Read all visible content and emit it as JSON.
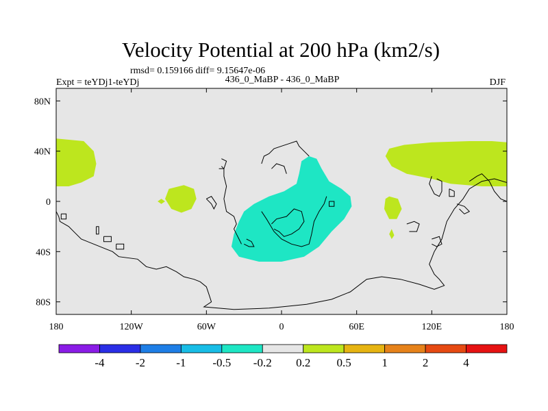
{
  "chart_data": {
    "type": "heatmap",
    "title": "Velocity Potential at 200 hPa (km2/s)",
    "stats": "rmsd= 0.159166 diff= 9.15647e-06",
    "left_label": "Expt = teYDj1-teYDj",
    "center_label": "436_0_MaBP - 436_0_MaBP",
    "right_label": "DJF",
    "xlim": [
      -180,
      180
    ],
    "ylim": [
      -90,
      90
    ],
    "x_ticks": [
      {
        "value": -180,
        "label": "180"
      },
      {
        "value": -120,
        "label": "120W"
      },
      {
        "value": -60,
        "label": "60W"
      },
      {
        "value": 0,
        "label": "0"
      },
      {
        "value": 60,
        "label": "60E"
      },
      {
        "value": 120,
        "label": "120E"
      },
      {
        "value": 180,
        "label": "180"
      }
    ],
    "y_ticks": [
      {
        "value": 80,
        "label": "80N"
      },
      {
        "value": 40,
        "label": "40N"
      },
      {
        "value": 0,
        "label": "0"
      },
      {
        "value": -40,
        "label": "40S"
      },
      {
        "value": -80,
        "label": "80S"
      }
    ],
    "colorbar": {
      "colors": [
        "#8a1ce6",
        "#2a2ee6",
        "#1e7ee6",
        "#18bde6",
        "#1ee6c4",
        "#e6e6e6",
        "#bde61e",
        "#e6b412",
        "#e6821a",
        "#e64a12",
        "#e61212"
      ],
      "levels": [
        "-4",
        "-2",
        "-1",
        "-0.5",
        "-0.2",
        "0.2",
        "0.5",
        "1",
        "2",
        "4"
      ]
    },
    "background_value_color": "#e6e6e6",
    "regions": [
      {
        "name": "west-pacific-positive",
        "color": "#bde61e",
        "points": [
          [
            -180,
            50
          ],
          [
            -158,
            48
          ],
          [
            -150,
            40
          ],
          [
            -148,
            30
          ],
          [
            -150,
            20
          ],
          [
            -160,
            15
          ],
          [
            -170,
            12
          ],
          [
            -180,
            12
          ]
        ]
      },
      {
        "name": "east-asia-positive",
        "color": "#bde61e",
        "points": [
          [
            180,
            12
          ],
          [
            160,
            12
          ],
          [
            135,
            14
          ],
          [
            120,
            18
          ],
          [
            100,
            22
          ],
          [
            88,
            28
          ],
          [
            83,
            36
          ],
          [
            86,
            42
          ],
          [
            98,
            45
          ],
          [
            120,
            47
          ],
          [
            150,
            48
          ],
          [
            168,
            48
          ],
          [
            180,
            47
          ]
        ]
      },
      {
        "name": "atlantic-positive",
        "color": "#bde61e",
        "points": [
          [
            -90,
            10
          ],
          [
            -78,
            13
          ],
          [
            -70,
            10
          ],
          [
            -68,
            2
          ],
          [
            -72,
            -6
          ],
          [
            -80,
            -9
          ],
          [
            -88,
            -6
          ],
          [
            -93,
            2
          ]
        ]
      },
      {
        "name": "atlantic-positive-small",
        "color": "#bde61e",
        "points": [
          [
            -96,
            2
          ],
          [
            -93,
            0
          ],
          [
            -96,
            -2
          ],
          [
            -99,
            0
          ]
        ]
      },
      {
        "name": "indian-ocean-positive",
        "color": "#bde61e",
        "points": [
          [
            86,
            4
          ],
          [
            93,
            2
          ],
          [
            96,
            -6
          ],
          [
            92,
            -14
          ],
          [
            86,
            -14
          ],
          [
            82,
            -6
          ],
          [
            83,
            2
          ]
        ]
      },
      {
        "name": "indian-ocean-positive-small",
        "color": "#bde61e",
        "points": [
          [
            88,
            -22
          ],
          [
            90,
            -27
          ],
          [
            88,
            -30
          ],
          [
            86,
            -26
          ]
        ]
      },
      {
        "name": "africa-negative",
        "color": "#1ee6c4",
        "points": [
          [
            22,
            36
          ],
          [
            28,
            34
          ],
          [
            32,
            26
          ],
          [
            38,
            16
          ],
          [
            48,
            10
          ],
          [
            55,
            4
          ],
          [
            56,
            -4
          ],
          [
            50,
            -14
          ],
          [
            40,
            -24
          ],
          [
            30,
            -36
          ],
          [
            18,
            -44
          ],
          [
            0,
            -48
          ],
          [
            -18,
            -48
          ],
          [
            -34,
            -44
          ],
          [
            -40,
            -36
          ],
          [
            -38,
            -26
          ],
          [
            -34,
            -16
          ],
          [
            -30,
            -8
          ],
          [
            -22,
            -2
          ],
          [
            -10,
            4
          ],
          [
            2,
            8
          ],
          [
            12,
            14
          ],
          [
            14,
            22
          ],
          [
            16,
            32
          ]
        ]
      }
    ],
    "coastlines": [
      [
        [
          -180,
          -8
        ],
        [
          -178,
          -12
        ],
        [
          -177,
          -16
        ],
        [
          -170,
          -20
        ],
        [
          -165,
          -25
        ],
        [
          -160,
          -30
        ],
        [
          -150,
          -34
        ],
        [
          -140,
          -38
        ],
        [
          -135,
          -40
        ],
        [
          -130,
          -44
        ],
        [
          -115,
          -46
        ],
        [
          -108,
          -52
        ],
        [
          -100,
          -54
        ],
        [
          -92,
          -52
        ],
        [
          -84,
          -56
        ],
        [
          -78,
          -60
        ],
        [
          -70,
          -62
        ],
        [
          -65,
          -64
        ],
        [
          -60,
          -68
        ],
        [
          -58,
          -74
        ],
        [
          -56,
          -80
        ],
        [
          -62,
          -84
        ],
        [
          -38,
          -86
        ],
        [
          -10,
          -85
        ],
        [
          0,
          -84
        ],
        [
          20,
          -82
        ],
        [
          40,
          -78
        ],
        [
          55,
          -72
        ],
        [
          68,
          -62
        ],
        [
          80,
          -60
        ],
        [
          95,
          -62
        ],
        [
          110,
          -66
        ],
        [
          122,
          -70
        ],
        [
          130,
          -67
        ],
        [
          126,
          -62
        ],
        [
          122,
          -58
        ],
        [
          118,
          -50
        ],
        [
          122,
          -40
        ],
        [
          128,
          -30
        ],
        [
          132,
          -16
        ],
        [
          138,
          -6
        ],
        [
          145,
          2
        ],
        [
          150,
          10
        ],
        [
          160,
          16
        ],
        [
          170,
          18
        ],
        [
          180,
          15
        ]
      ],
      [
        [
          -176,
          -10
        ],
        [
          -172,
          -10
        ],
        [
          -172,
          -14
        ],
        [
          -176,
          -14
        ],
        [
          -176,
          -10
        ]
      ],
      [
        [
          -148,
          -20
        ],
        [
          -146,
          -20
        ],
        [
          -146,
          -26
        ],
        [
          -148,
          -26
        ],
        [
          -148,
          -20
        ]
      ],
      [
        [
          -142,
          -28
        ],
        [
          -136,
          -28
        ],
        [
          -136,
          -32
        ],
        [
          -142,
          -32
        ],
        [
          -142,
          -28
        ]
      ],
      [
        [
          -132,
          -34
        ],
        [
          -126,
          -34
        ],
        [
          -126,
          -38
        ],
        [
          -132,
          -38
        ],
        [
          -132,
          -34
        ]
      ],
      [
        [
          -48,
          28
        ],
        [
          -46,
          26
        ],
        [
          -46,
          20
        ],
        [
          -44,
          12
        ],
        [
          -46,
          2
        ],
        [
          -44,
          -8
        ],
        [
          -38,
          -12
        ],
        [
          -36,
          -18
        ],
        [
          -38,
          -22
        ],
        [
          -36,
          -26
        ],
        [
          -34,
          -30
        ],
        [
          -32,
          -34
        ]
      ],
      [
        [
          -50,
          26
        ],
        [
          -46,
          26
        ],
        [
          -44,
          32
        ],
        [
          -48,
          34
        ]
      ],
      [
        [
          -16,
          30
        ],
        [
          -14,
          36
        ],
        [
          -10,
          38
        ],
        [
          -6,
          42
        ],
        [
          0,
          44
        ],
        [
          6,
          46
        ],
        [
          12,
          48
        ],
        [
          14,
          44
        ],
        [
          18,
          40
        ],
        [
          20,
          38
        ],
        [
          22,
          36
        ]
      ],
      [
        [
          -16,
          -8
        ],
        [
          -12,
          -14
        ],
        [
          -6,
          -24
        ],
        [
          0,
          -30
        ],
        [
          8,
          -34
        ],
        [
          16,
          -36
        ],
        [
          22,
          -34
        ],
        [
          24,
          -26
        ],
        [
          26,
          -16
        ],
        [
          30,
          -8
        ],
        [
          34,
          -2
        ],
        [
          36,
          4
        ]
      ],
      [
        [
          -8,
          -18
        ],
        [
          -4,
          -14
        ],
        [
          4,
          -12
        ],
        [
          10,
          -6
        ],
        [
          16,
          -8
        ],
        [
          18,
          -16
        ],
        [
          14,
          -22
        ],
        [
          8,
          -26
        ],
        [
          2,
          -28
        ],
        [
          -2,
          -24
        ],
        [
          -6,
          -22
        ]
      ],
      [
        [
          -60,
          2
        ],
        [
          -56,
          -2
        ],
        [
          -54,
          -6
        ],
        [
          -52,
          -2
        ],
        [
          -56,
          4
        ],
        [
          -60,
          2
        ]
      ],
      [
        [
          38,
          0
        ],
        [
          42,
          0
        ],
        [
          42,
          -4
        ],
        [
          38,
          -4
        ],
        [
          38,
          0
        ]
      ],
      [
        [
          -28,
          -30
        ],
        [
          -24,
          -32
        ],
        [
          -22,
          -36
        ],
        [
          -26,
          -36
        ],
        [
          -30,
          -34
        ]
      ],
      [
        [
          -8,
          26
        ],
        [
          -4,
          30
        ],
        [
          2,
          28
        ],
        [
          4,
          22
        ]
      ],
      [
        [
          124,
          18
        ],
        [
          128,
          16
        ],
        [
          128,
          8
        ],
        [
          126,
          4
        ],
        [
          122,
          6
        ],
        [
          118,
          14
        ],
        [
          120,
          20
        ]
      ],
      [
        [
          134,
          10
        ],
        [
          138,
          8
        ],
        [
          138,
          4
        ],
        [
          134,
          4
        ],
        [
          134,
          10
        ]
      ],
      [
        [
          140,
          -2
        ],
        [
          146,
          -4
        ],
        [
          150,
          -8
        ],
        [
          146,
          -10
        ],
        [
          142,
          -6
        ]
      ],
      [
        [
          150,
          16
        ],
        [
          156,
          20
        ],
        [
          160,
          22
        ],
        [
          166,
          16
        ],
        [
          170,
          8
        ],
        [
          175,
          2
        ],
        [
          180,
          0
        ]
      ],
      [
        [
          100,
          -18
        ],
        [
          106,
          -16
        ],
        [
          110,
          -18
        ],
        [
          108,
          -24
        ],
        [
          102,
          -24
        ]
      ],
      [
        [
          120,
          -30
        ],
        [
          126,
          -28
        ],
        [
          128,
          -34
        ],
        [
          124,
          -36
        ],
        [
          120,
          -34
        ]
      ]
    ]
  }
}
